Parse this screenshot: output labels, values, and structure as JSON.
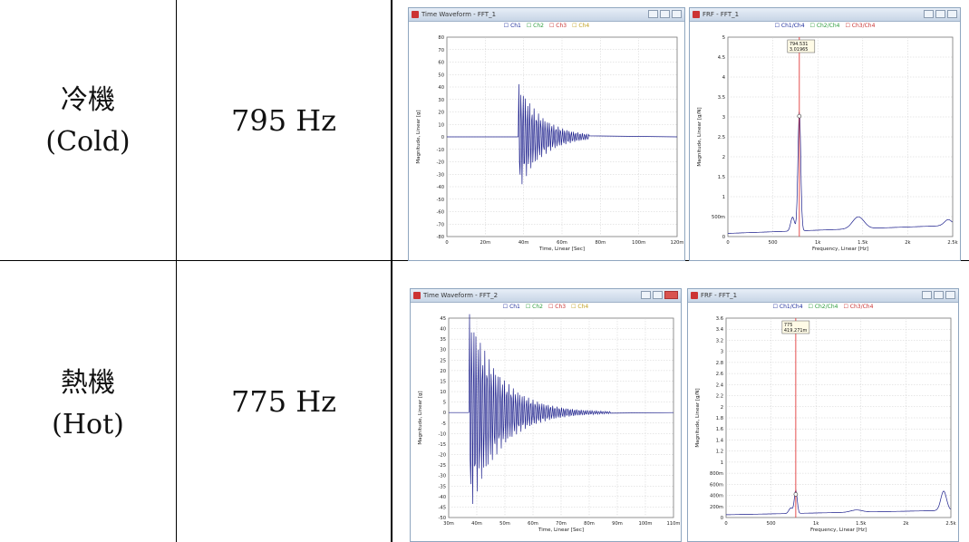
{
  "rows": [
    {
      "label_line1": "冷機",
      "label_line2": "(Cold)",
      "frequency": "795 Hz",
      "time_window": {
        "title": "Time Waveform - FFT_1",
        "legend": [
          "Ch1",
          "Ch2",
          "Ch3",
          "Ch4"
        ],
        "ylabel": "Magnitude, Linear [g]",
        "xlabel": "Time, Linear [Sec]",
        "yticks": [
          "80",
          "70",
          "60",
          "50",
          "40",
          "30",
          "20",
          "10",
          "0",
          "-10",
          "-20",
          "-30",
          "-40",
          "-50",
          "-60",
          "-70",
          "-80"
        ],
        "xticks": [
          "0",
          "20m",
          "40m",
          "60m",
          "80m",
          "100m",
          "120m"
        ]
      },
      "frf_window": {
        "title": "FRF - FFT_1",
        "legend": [
          "Ch1/Ch4",
          "Ch2/Ch4",
          "Ch3/Ch4"
        ],
        "ylabel": "Magnitude, Linear [g/N]",
        "xlabel": "Frequency, Linear [Hz]",
        "yticks": [
          "5",
          "4.5",
          "4",
          "3.5",
          "3",
          "2.5",
          "2",
          "1.5",
          "1",
          "500m",
          "0"
        ],
        "xticks": [
          "0",
          "500",
          "1k",
          "1.5k",
          "2k",
          "2.5k"
        ],
        "cursor_x": "794.531",
        "cursor_y": "3.01965"
      }
    },
    {
      "label_line1": "熱機",
      "label_line2": "(Hot)",
      "frequency": "775 Hz",
      "time_window": {
        "title": "Time Waveform - FFT_2",
        "legend": [
          "Ch1",
          "Ch2",
          "Ch3",
          "Ch4"
        ],
        "ylabel": "Magnitude, Linear [g]",
        "xlabel": "Time, Linear [Sec]",
        "yticks": [
          "45",
          "40",
          "35",
          "30",
          "25",
          "20",
          "15",
          "10",
          "5",
          "0",
          "-5",
          "-10",
          "-15",
          "-20",
          "-25",
          "-30",
          "-35",
          "-40",
          "-45",
          "-50"
        ],
        "xticks": [
          "30m",
          "40m",
          "50m",
          "60m",
          "70m",
          "80m",
          "90m",
          "100m",
          "110m"
        ]
      },
      "frf_window": {
        "title": "FRF - FFT_1",
        "legend": [
          "Ch1/Ch4",
          "Ch2/Ch4",
          "Ch3/Ch4"
        ],
        "ylabel": "Magnitude, Linear [g/N]",
        "xlabel": "Frequency, Linear [Hz]",
        "yticks": [
          "3.6",
          "3.4",
          "3.2",
          "3",
          "2.8",
          "2.6",
          "2.4",
          "2.2",
          "2",
          "1.8",
          "1.6",
          "1.4",
          "1.2",
          "1",
          "800m",
          "600m",
          "400m",
          "200m",
          "0"
        ],
        "xticks": [
          "0",
          "500",
          "1k",
          "1.5k",
          "2k",
          "2.5k"
        ],
        "cursor_x": "775",
        "cursor_y": "419.271m"
      }
    }
  ],
  "colors": {
    "trace": "#1c1f8c",
    "cursor": "#e23b3b",
    "ch1": "#1a2a9a",
    "ch2": "#2a9a3a",
    "ch3": "#c83030",
    "ch4": "#c0a020"
  }
}
